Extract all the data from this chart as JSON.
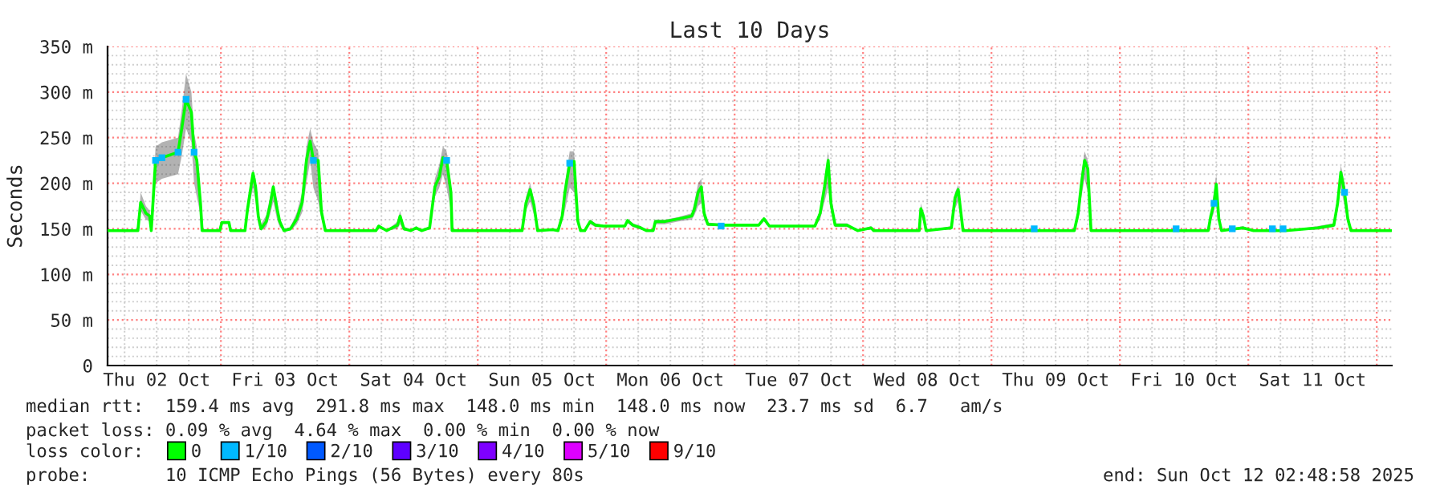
{
  "chart_data": {
    "type": "line",
    "title": "Last 10 Days",
    "ylabel": "Seconds",
    "legend_title": "loss color:",
    "legend": "bottom",
    "grid": true,
    "xlim": [
      "2025-10-02T02:49",
      "2025-10-12T02:49"
    ],
    "ylim": [
      0,
      350
    ],
    "yticks": [
      0,
      {
        "value": 50,
        "label": "50 m"
      },
      {
        "value": 100,
        "label": "100 m"
      },
      {
        "value": 150,
        "label": "150 m"
      },
      {
        "value": 200,
        "label": "200 m"
      },
      {
        "value": 250,
        "label": "250 m"
      },
      {
        "value": 300,
        "label": "300 m"
      },
      {
        "value": 350,
        "label": "350 m"
      }
    ],
    "xticks": [
      {
        "value": "2025-10-02T12:00",
        "label": "Thu 02 Oct"
      },
      {
        "value": "2025-10-03T12:00",
        "label": "Fri 03 Oct"
      },
      {
        "value": "2025-10-04T12:00",
        "label": "Sat 04 Oct"
      },
      {
        "value": "2025-10-05T12:00",
        "label": "Sun 05 Oct"
      },
      {
        "value": "2025-10-06T12:00",
        "label": "Mon 06 Oct"
      },
      {
        "value": "2025-10-07T12:00",
        "label": "Tue 07 Oct"
      },
      {
        "value": "2025-10-08T12:00",
        "label": "Wed 08 Oct"
      },
      {
        "value": "2025-10-09T12:00",
        "label": "Thu 09 Oct"
      },
      {
        "value": "2025-10-10T12:00",
        "label": "Fri 10 Oct"
      },
      {
        "value": "2025-10-11T12:00",
        "label": "Sat 11 Oct"
      },
      {
        "value": "2025-10-03T00:00",
        "label": null
      },
      {
        "value": "2025-10-04T00:00",
        "label": null
      },
      {
        "value": "2025-10-05T00:00",
        "label": null
      },
      {
        "value": "2025-10-06T00:00",
        "label": null
      },
      {
        "value": "2025-10-07T00:00",
        "label": null
      },
      {
        "value": "2025-10-08T00:00",
        "label": null
      },
      {
        "value": "2025-10-09T00:00",
        "label": null
      },
      {
        "value": "2025-10-10T00:00",
        "label": null
      },
      {
        "value": "2025-10-11T00:00",
        "label": null
      },
      {
        "value": "2025-10-12T00:00",
        "label": null
      }
    ],
    "annotations": [
      "median rtt:  159.4 ms avg  291.8 ms max  148.0 ms min  148.0 ms now  23.7 ms sd  6.7   am/s",
      "packet loss: 0.09 % avg  4.64 % max  0.00 % min  0.00 % now",
      "probe:       10 ICMP Echo Pings (56 Bytes) every 80s",
      "end: Sun Oct 12 02:48:58 2025"
    ],
    "series": [
      {
        "name": "0",
        "color": "#00ff00",
        "marker": "none",
        "line_style": "solid",
        "x": [
          "2025-10-02T02:49",
          "2025-10-02T08:29",
          "2025-10-02T09:00",
          "2025-10-02T09:59",
          "2025-10-02T10:41",
          "2025-10-02T10:59",
          "2025-10-02T11:47",
          "2025-10-02T12:59",
          "2025-10-02T15:59",
          "2025-10-02T16:41",
          "2025-10-02T17:29",
          "2025-10-02T18:29",
          "2025-10-02T18:59",
          "2025-10-02T19:30",
          "2025-10-02T20:11",
          "2025-10-02T20:29",
          "2025-10-02T23:47",
          "2025-10-03T00:11",
          "2025-10-03T01:30",
          "2025-10-03T01:48",
          "2025-10-03T04:30",
          "2025-10-03T04:59",
          "2025-10-03T06:00",
          "2025-10-03T06:29",
          "2025-10-03T06:59",
          "2025-10-03T07:30",
          "2025-10-03T08:29",
          "2025-10-03T09:11",
          "2025-10-03T09:47",
          "2025-10-03T10:30",
          "2025-10-03T10:59",
          "2025-10-03T11:47",
          "2025-10-03T12:59",
          "2025-10-03T14:11",
          "2025-10-03T15:11",
          "2025-10-03T15:59",
          "2025-10-03T16:41",
          "2025-10-03T17:17",
          "2025-10-03T18:11",
          "2025-10-03T18:47",
          "2025-10-03T19:30",
          "2025-10-04T04:59",
          "2025-10-04T05:29",
          "2025-10-04T06:59",
          "2025-10-04T09:00",
          "2025-10-04T09:29",
          "2025-10-04T10:12",
          "2025-10-04T11:29",
          "2025-10-04T12:29",
          "2025-10-04T13:30",
          "2025-10-04T15:00",
          "2025-10-04T15:59",
          "2025-10-04T16:48",
          "2025-10-04T17:29",
          "2025-10-04T18:11",
          "2025-10-04T18:59",
          "2025-10-04T19:12",
          "2025-10-05T08:17",
          "2025-10-05T09:00",
          "2025-10-05T09:47",
          "2025-10-05T10:30",
          "2025-10-05T11:11",
          "2025-10-05T13:59",
          "2025-10-05T15:00",
          "2025-10-05T15:47",
          "2025-10-05T16:17",
          "2025-10-05T17:11",
          "2025-10-05T18:00",
          "2025-10-05T18:41",
          "2025-10-05T19:12",
          "2025-10-05T19:59",
          "2025-10-05T21:00",
          "2025-10-05T21:59",
          "2025-10-05T23:29",
          "2025-10-06T03:29",
          "2025-10-06T03:59",
          "2025-10-06T04:59",
          "2025-10-06T06:29",
          "2025-10-06T07:30",
          "2025-10-06T08:47",
          "2025-10-06T09:11",
          "2025-10-06T10:59",
          "2025-10-06T13:30",
          "2025-10-06T15:59",
          "2025-10-06T16:30",
          "2025-10-06T17:11",
          "2025-10-06T17:47",
          "2025-10-06T18:18",
          "2025-10-06T18:59",
          "2025-10-06T21:59",
          "2025-10-07T04:30",
          "2025-10-07T05:29",
          "2025-10-07T06:29",
          "2025-10-07T15:00",
          "2025-10-07T15:59",
          "2025-10-07T16:48",
          "2025-10-07T17:29",
          "2025-10-07T18:00",
          "2025-10-07T18:47",
          "2025-10-07T21:00",
          "2025-10-07T22:59",
          "2025-10-08T01:30",
          "2025-10-08T01:59",
          "2025-10-08T10:30",
          "2025-10-08T10:48",
          "2025-10-08T11:17",
          "2025-10-08T11:47",
          "2025-10-08T16:30",
          "2025-10-08T17:11",
          "2025-10-08T17:47",
          "2025-10-08T18:18",
          "2025-10-08T18:41",
          "2025-10-09T15:29",
          "2025-10-09T16:12",
          "2025-10-09T16:48",
          "2025-10-09T17:24",
          "2025-10-09T18:00",
          "2025-10-09T18:36",
          "2025-10-10T16:30",
          "2025-10-10T16:59",
          "2025-10-10T17:35",
          "2025-10-10T18:00",
          "2025-10-10T18:29",
          "2025-10-10T18:59",
          "2025-10-10T22:59",
          "2025-10-11T00:59",
          "2025-10-11T06:59",
          "2025-10-11T12:59",
          "2025-10-11T15:59",
          "2025-10-11T16:41",
          "2025-10-11T17:17",
          "2025-10-11T17:59",
          "2025-10-11T18:35",
          "2025-10-11T19:11",
          "2025-10-12T02:41"
        ],
        "values": [
          148,
          148,
          179,
          167,
          164,
          148,
          225,
          228,
          234,
          260,
          292,
          278,
          234,
          225,
          178,
          148,
          148,
          157,
          157,
          148,
          148,
          172,
          211,
          196,
          164,
          150,
          158,
          176,
          196,
          172,
          158,
          148,
          150,
          161,
          179,
          225,
          246,
          225,
          225,
          169,
          148,
          148,
          153,
          148,
          154,
          164,
          150,
          148,
          151,
          148,
          151,
          196,
          207,
          228,
          225,
          190,
          148,
          148,
          178,
          193,
          176,
          148,
          149,
          148,
          164,
          190,
          222,
          224,
          159,
          148,
          148,
          158,
          154,
          153,
          153,
          159,
          154,
          151,
          148,
          148,
          158,
          158,
          161,
          164,
          172,
          190,
          196,
          167,
          155,
          154,
          154,
          161,
          153,
          153,
          167,
          196,
          225,
          178,
          154,
          154,
          148,
          151,
          148,
          148,
          172,
          164,
          148,
          151,
          184,
          193,
          167,
          148,
          148,
          167,
          199,
          225,
          216,
          148,
          148,
          164,
          178,
          199,
          161,
          148,
          151,
          148,
          148,
          151,
          154,
          178,
          212,
          190,
          161,
          148,
          148
        ],
        "lower": [
          148,
          148,
          170,
          160,
          158,
          148,
          200,
          205,
          210,
          230,
          260,
          245,
          200,
          185,
          165,
          148,
          148,
          155,
          155,
          148,
          148,
          165,
          195,
          180,
          155,
          148,
          152,
          165,
          180,
          160,
          152,
          148,
          148,
          155,
          168,
          200,
          225,
          195,
          180,
          160,
          148,
          148,
          150,
          148,
          150,
          155,
          148,
          148,
          149,
          148,
          149,
          185,
          195,
          210,
          195,
          170,
          148,
          148,
          170,
          180,
          165,
          148,
          148,
          148,
          158,
          170,
          195,
          190,
          155,
          148,
          148,
          155,
          152,
          152,
          152,
          156,
          152,
          149,
          148,
          148,
          155,
          155,
          158,
          160,
          165,
          175,
          178,
          160,
          153,
          153,
          153,
          158,
          152,
          152,
          160,
          180,
          195,
          168,
          152,
          152,
          148,
          149,
          148,
          148,
          165,
          158,
          148,
          149,
          172,
          180,
          160,
          148,
          148,
          160,
          185,
          205,
          190,
          148,
          148,
          158,
          168,
          185,
          155,
          148,
          149,
          148,
          148,
          149,
          152,
          170,
          195,
          175,
          155,
          148,
          148
        ],
        "upper": [
          148,
          148,
          190,
          175,
          170,
          150,
          240,
          245,
          250,
          280,
          320,
          300,
          255,
          240,
          185,
          150,
          148,
          158,
          158,
          148,
          148,
          180,
          215,
          205,
          170,
          155,
          165,
          185,
          200,
          180,
          162,
          150,
          152,
          168,
          190,
          240,
          260,
          245,
          235,
          175,
          148,
          148,
          155,
          148,
          158,
          170,
          153,
          148,
          153,
          148,
          153,
          205,
          220,
          240,
          235,
          200,
          148,
          148,
          185,
          200,
          182,
          148,
          150,
          148,
          170,
          200,
          235,
          235,
          165,
          148,
          148,
          160,
          156,
          154,
          154,
          161,
          156,
          153,
          148,
          148,
          160,
          160,
          163,
          167,
          180,
          200,
          205,
          172,
          157,
          155,
          155,
          163,
          154,
          154,
          172,
          205,
          235,
          190,
          156,
          156,
          148,
          153,
          148,
          148,
          178,
          168,
          148,
          153,
          190,
          198,
          172,
          148,
          148,
          175,
          210,
          235,
          225,
          148,
          148,
          170,
          190,
          210,
          168,
          148,
          153,
          148,
          148,
          153,
          156,
          185,
          220,
          200,
          168,
          148,
          148
        ]
      },
      {
        "name": "1/10",
        "type": "scatter",
        "color": "#00b8ff",
        "marker": "square",
        "x": [
          "2025-10-02T11:47",
          "2025-10-02T12:59",
          "2025-10-02T15:59",
          "2025-10-02T17:29",
          "2025-10-02T18:59",
          "2025-10-03T17:17",
          "2025-10-04T18:11",
          "2025-10-05T17:11",
          "2025-10-06T21:29",
          "2025-10-09T07:59",
          "2025-10-10T10:30",
          "2025-10-10T17:35",
          "2025-10-10T21:00",
          "2025-10-11T04:30",
          "2025-10-11T06:29",
          "2025-10-11T17:59"
        ],
        "values": [
          225,
          228,
          234,
          292,
          234,
          225,
          225,
          222,
          153,
          150,
          150,
          178,
          150,
          150,
          150,
          190
        ]
      },
      {
        "name": "2/10",
        "type": "scatter",
        "color": "#0059ff",
        "marker": "square"
      },
      {
        "name": "3/10",
        "type": "scatter",
        "color": "#5e00ff",
        "marker": "square"
      },
      {
        "name": "4/10",
        "type": "scatter",
        "color": "#7e00ff",
        "marker": "square"
      },
      {
        "name": "5/10",
        "type": "scatter",
        "color": "#dd00ff",
        "marker": "square"
      },
      {
        "name": "9/10",
        "type": "scatter",
        "color": "#ff0000",
        "marker": "square"
      }
    ]
  }
}
